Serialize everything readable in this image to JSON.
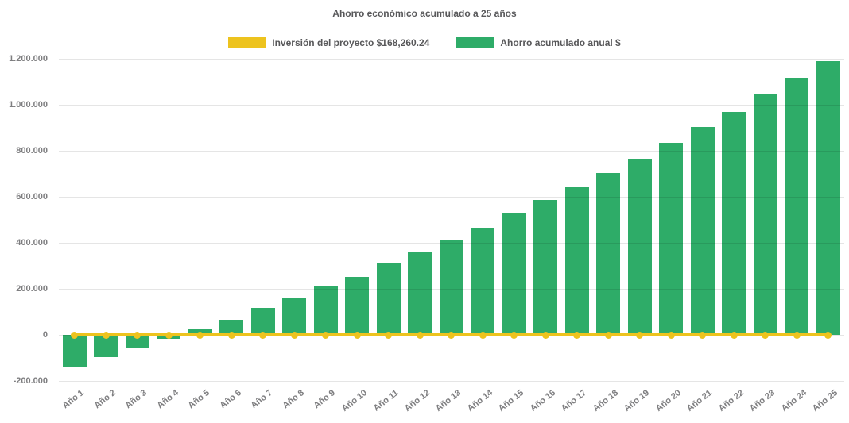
{
  "title": "Ahorro económico acumulado a 25 años",
  "legend": {
    "items": [
      {
        "key": "investment",
        "label": "Inversión del proyecto $168,260.24",
        "color": "#EDC31E"
      },
      {
        "key": "savings",
        "label": "Ahorro acumulado anual $",
        "color": "#2EAC68"
      }
    ]
  },
  "colors": {
    "bar_green": "#2EAC68",
    "line_yellow": "#EDC31E",
    "title_text": "#58585A",
    "axis_text": "#7E7E80"
  },
  "chart_data": {
    "type": "bar",
    "title": "Ahorro económico acumulado a 25 años",
    "categories": [
      "Año 1",
      "Año 2",
      "Año 3",
      "Año 4",
      "Año 5",
      "Año 6",
      "Año 7",
      "Año 8",
      "Año 9",
      "Año 10",
      "Año 11",
      "Año 12",
      "Año 13",
      "Año 14",
      "Año 15",
      "Año 16",
      "Año 17",
      "Año 18",
      "Año 19",
      "Año 20",
      "Año 21",
      "Año 22",
      "Año 23",
      "Año 24",
      "Año 25"
    ],
    "series": [
      {
        "name": "Ahorro acumulado anual $",
        "type": "bar",
        "color": "#2EAC68",
        "values": [
          -138000,
          -97000,
          -60000,
          -16000,
          25000,
          67000,
          117000,
          160000,
          209000,
          252000,
          310000,
          360000,
          411000,
          467000,
          527000,
          585000,
          646000,
          702000,
          767000,
          833000,
          902000,
          968000,
          1044000,
          1116000,
          1191000
        ]
      },
      {
        "name": "Inversión del proyecto $168,260.24",
        "type": "line",
        "color": "#EDC31E",
        "values": [
          0,
          0,
          0,
          0,
          0,
          0,
          0,
          0,
          0,
          0,
          0,
          0,
          0,
          0,
          0,
          0,
          0,
          0,
          0,
          0,
          0,
          0,
          0,
          0,
          0
        ]
      }
    ],
    "xlabel": "",
    "ylabel": "",
    "ylim": [
      -200000,
      1200000
    ],
    "ytick_step": 200000,
    "ytick_labels": [
      "1.200.000",
      "1.000.000",
      "800.000",
      "600.000",
      "400.000",
      "200.000",
      "0",
      "-200.000"
    ],
    "grid": true,
    "legend_position": "top"
  }
}
